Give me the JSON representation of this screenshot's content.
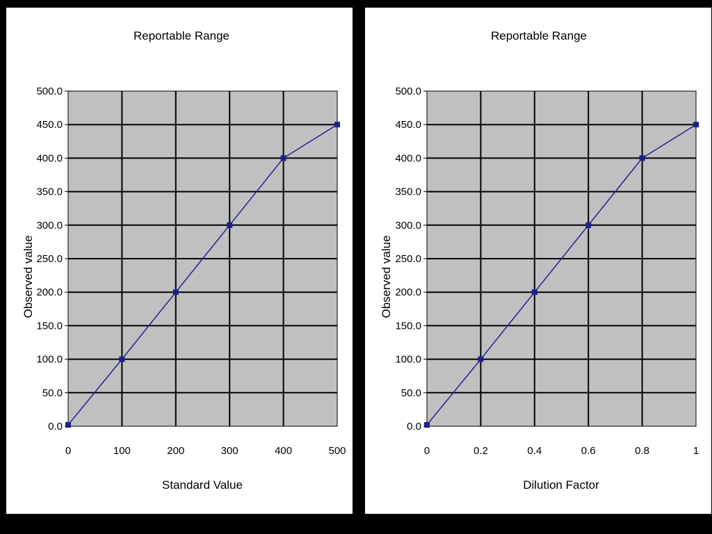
{
  "chart_data": [
    {
      "type": "line",
      "title": "Reportable Range",
      "xlabel": "Standard Value",
      "ylabel": "Observed value",
      "x": [
        0,
        100,
        200,
        300,
        400,
        500
      ],
      "x_ticks": [
        "0",
        "100",
        "200",
        "300",
        "400",
        "500"
      ],
      "xlim": [
        0,
        500
      ],
      "y_ticks": [
        "0.0",
        "50.0",
        "100.0",
        "150.0",
        "200.0",
        "250.0",
        "300.0",
        "350.0",
        "400.0",
        "450.0",
        "500.0"
      ],
      "ylim": [
        0,
        500
      ],
      "grid": true,
      "plot_background": "#c0c0c0",
      "line_color": "#1f1f8f",
      "series": [
        {
          "values": [
            2,
            100,
            200,
            300,
            400,
            450
          ]
        }
      ]
    },
    {
      "type": "line",
      "title": "Reportable Range",
      "xlabel": "Dilution Factor",
      "ylabel": "Observed value",
      "x": [
        0,
        0.2,
        0.4,
        0.6,
        0.8,
        1
      ],
      "x_ticks": [
        "0",
        "0.2",
        "0.4",
        "0.6",
        "0.8",
        "1"
      ],
      "xlim": [
        0,
        1
      ],
      "y_ticks": [
        "0.0",
        "50.0",
        "100.0",
        "150.0",
        "200.0",
        "250.0",
        "300.0",
        "350.0",
        "400.0",
        "450.0",
        "500.0"
      ],
      "ylim": [
        0,
        500
      ],
      "grid": true,
      "plot_background": "#c0c0c0",
      "line_color": "#1f1f8f",
      "series": [
        {
          "values": [
            2,
            100,
            200,
            300,
            400,
            450
          ]
        }
      ]
    }
  ]
}
